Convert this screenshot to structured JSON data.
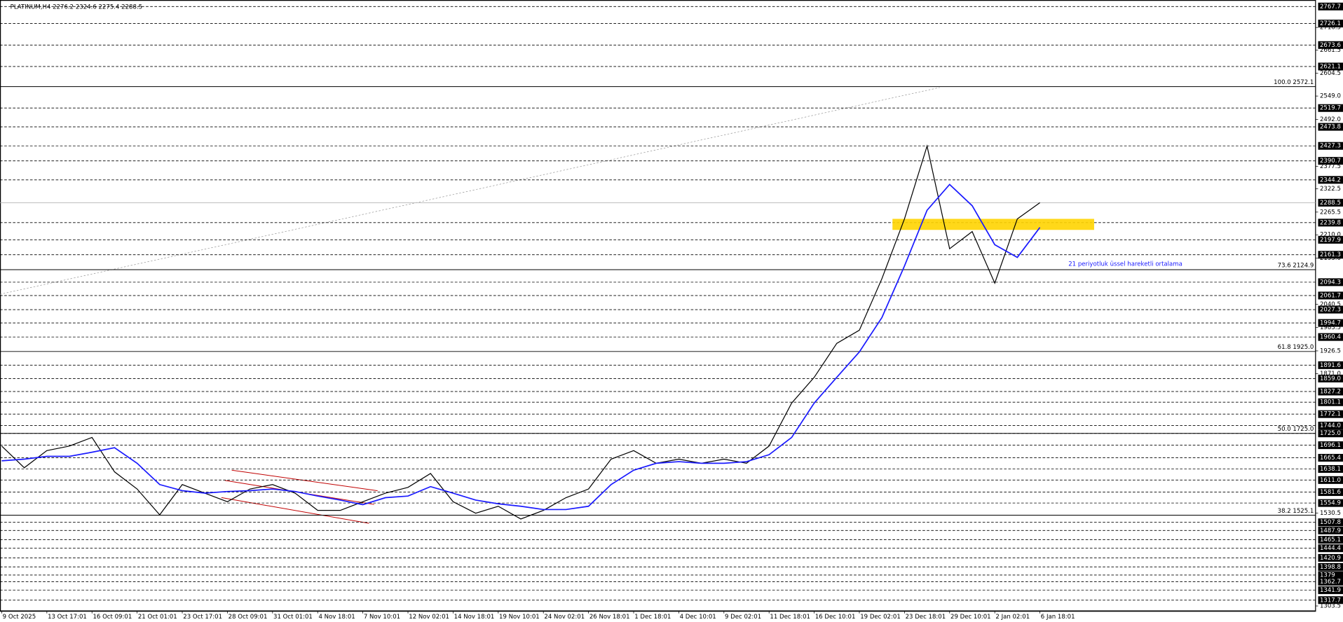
{
  "chart_data": {
    "type": "line",
    "title": "PLATINUM,H4  2276.2 2324.6 2275.4 2288.5",
    "annotation": "21 periyotluk üssel hareketli ortalama",
    "categories": [
      "9 Oct 2025",
      null,
      "13 Oct 17:01",
      null,
      "16 Oct 09:01",
      null,
      "21 Oct 01:01",
      null,
      "23 Oct 17:01",
      null,
      "28 Oct 09:01",
      null,
      "31 Oct 01:01",
      null,
      "4 Nov 18:01",
      null,
      "7 Nov 10:01",
      null,
      "12 Nov 02:01",
      null,
      "14 Nov 18:01",
      null,
      "19 Nov 10:01",
      null,
      "24 Nov 02:01",
      null,
      "26 Nov 18:01",
      null,
      "1 Dec 18:01",
      null,
      "4 Dec 10:01",
      null,
      "9 Dec 02:01",
      null,
      "11 Dec 18:01",
      null,
      "16 Dec 10:01",
      null,
      "19 Dec 02:01",
      null,
      "23 Dec 18:01",
      null,
      "29 Dec 10:01",
      null,
      "2 Jan 02:01",
      null,
      "6 Jan 18:01"
    ],
    "series": [
      {
        "name": "PLATINUM,H4",
        "color": "#000000",
        "values": [
          1694,
          1641,
          1683,
          1694,
          1715,
          1631,
          1589,
          1526,
          1600,
          1579,
          1558,
          1589,
          1600,
          1579,
          1537,
          1537,
          1558,
          1579,
          1593,
          1627,
          1558,
          1530,
          1547,
          1516,
          1537,
          1568,
          1589,
          1662,
          1683,
          1652,
          1662,
          1652,
          1662,
          1652,
          1694,
          1799,
          1862,
          1945,
          1977,
          2103,
          2249,
          2427,
          2176,
          2218,
          2092,
          2249,
          2288.5
        ]
      },
      {
        "name": "EMA 21",
        "color": "#1a1aff",
        "values": [
          1658,
          1662,
          1669,
          1669,
          1679,
          1690,
          1652,
          1600,
          1585,
          1579,
          1583,
          1585,
          1589,
          1583,
          1572,
          1562,
          1551,
          1568,
          1572,
          1595,
          1579,
          1562,
          1553,
          1547,
          1539,
          1539,
          1547,
          1600,
          1635,
          1652,
          1656,
          1652,
          1652,
          1656,
          1673,
          1715,
          1799,
          1862,
          1924,
          2008,
          2134,
          2270,
          2333,
          2281,
          2186,
          2155,
          2228
        ]
      }
    ],
    "ylim": [
      1291.5,
      2783.6
    ],
    "yticks": [
      2716.5,
      2661.5,
      2604.5,
      {
        "value": 2549,
        "label": "2549.0"
      },
      {
        "value": 2492,
        "label": "2492.0"
      },
      2377.5,
      2322.5,
      2265.5,
      {
        "value": 2210,
        "label": "2210.0"
      },
      {
        "value": 2153,
        "label": "2153.0"
      },
      2040.5,
      1983.5,
      1926.5,
      {
        "value": 1871,
        "label": "1871.0"
      },
      1530.5,
      1303.5
    ],
    "levels": [
      2767.7,
      2726.1,
      2673.6,
      2621.1,
      2519.7,
      2473.8,
      2427.3,
      2390.7,
      2344.2,
      2239.8,
      2197.9,
      2161.3,
      2094.3,
      2061.7,
      2027.3,
      1994.7,
      1960.4,
      1891.6,
      {
        "value": 1859,
        "label": "1859.0"
      },
      1827.2,
      1801.1,
      1772.1,
      {
        "value": 1744,
        "label": "1744.0"
      },
      {
        "value": 1725,
        "label": "1725.0"
      },
      1696.1,
      1665.4,
      1638.1,
      {
        "value": 1611,
        "label": "1611.0"
      },
      1581.6,
      1554.9,
      1507.8,
      1487.9,
      1465.1,
      1444.4,
      1420.9,
      1398.8,
      1379.0,
      1362.7,
      1341.9,
      1317.7
    ],
    "current_price": 2288.5,
    "fib_levels": [
      {
        "value": 2572.1,
        "label": "100.0 2572.1"
      },
      {
        "value": 2124.9,
        "label": "73.6 2124.9"
      },
      {
        "value": 1925,
        "label": "61.8 1925.0"
      },
      {
        "value": 1725,
        "label": "50.0 1725.0"
      },
      {
        "value": 1525.1,
        "label": "38.2 1525.1"
      }
    ],
    "zone": {
      "low": 2222,
      "high": 2249,
      "color": "#ffd400"
    }
  }
}
